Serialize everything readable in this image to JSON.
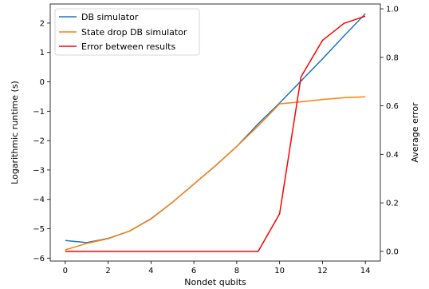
{
  "chart_data": {
    "type": "line",
    "xlabel": "Nondet qubits",
    "ylabel_left": "Logarithmic runtime (s)",
    "ylabel_right": "Average error",
    "xlim": [
      -0.7,
      14.7
    ],
    "ylim_left": [
      -6.1,
      2.65
    ],
    "ylim_right": [
      -0.04,
      1.02
    ],
    "x_ticks": [
      0,
      2,
      4,
      6,
      8,
      10,
      12,
      14
    ],
    "y_left_ticks": [
      2,
      1,
      0,
      -1,
      -2,
      -3,
      -4,
      -5,
      -6
    ],
    "y_left_tick_labels": [
      "2",
      "1",
      "0",
      "−1",
      "−2",
      "−3",
      "−4",
      "−5",
      "−6"
    ],
    "y_right_ticks": [
      0.0,
      0.2,
      0.4,
      0.6,
      0.8,
      1.0
    ],
    "y_right_tick_labels": [
      "0.0",
      "0.2",
      "0.4",
      "0.6",
      "0.8",
      "1.0"
    ],
    "legend_position": "upper-left",
    "grid": false,
    "series": [
      {
        "name": "DB simulator",
        "axis": "left",
        "color": "#1f77b4",
        "x": [
          0,
          1,
          2,
          3,
          4,
          5,
          6,
          7,
          8,
          9,
          10,
          11,
          12,
          13,
          14
        ],
        "values": [
          -5.4,
          -5.47,
          -5.33,
          -5.08,
          -4.66,
          -4.1,
          -3.48,
          -2.86,
          -2.2,
          -1.43,
          -0.72,
          0.03,
          0.78,
          1.56,
          2.32
        ]
      },
      {
        "name": "State drop DB simulator",
        "axis": "left",
        "color": "#ff7f0e",
        "x": [
          0,
          1,
          2,
          3,
          4,
          5,
          6,
          7,
          8,
          9,
          10,
          11,
          12,
          13,
          14
        ],
        "values": [
          -5.72,
          -5.5,
          -5.34,
          -5.08,
          -4.67,
          -4.1,
          -3.48,
          -2.86,
          -2.2,
          -1.5,
          -0.75,
          -0.68,
          -0.6,
          -0.54,
          -0.51
        ]
      },
      {
        "name": "Error between results",
        "axis": "right",
        "color": "#ff0000",
        "x": [
          0,
          1,
          2,
          3,
          4,
          5,
          6,
          7,
          8,
          9,
          10,
          11,
          12,
          13,
          14
        ],
        "values": [
          0,
          0,
          0,
          0,
          0,
          0,
          0,
          0,
          0,
          0,
          0.155,
          0.72,
          0.87,
          0.94,
          0.97
        ]
      }
    ]
  }
}
